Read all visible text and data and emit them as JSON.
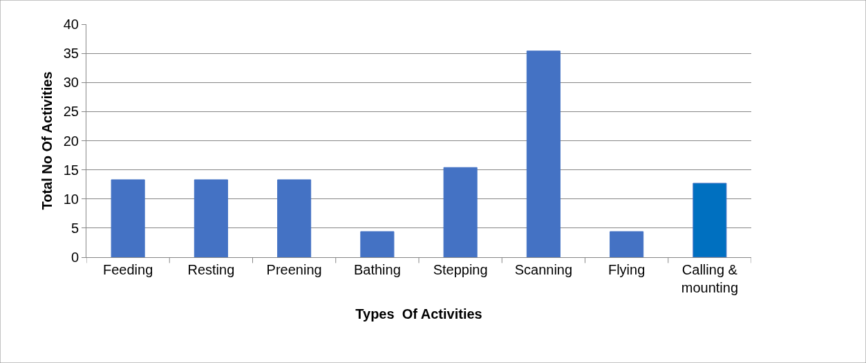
{
  "chart_data": {
    "type": "bar",
    "xlabel": "Types  Of Activities",
    "ylabel": "Total No Of Activities",
    "categories": [
      "Feeding",
      "Resting",
      "Preening",
      "Bathing",
      "Stepping",
      "Scanning",
      "Flying",
      "Calling & mounting"
    ],
    "values": [
      13.3,
      13.3,
      13.3,
      4.4,
      15.4,
      35.4,
      4.4,
      12.7
    ],
    "colors": [
      "#4472c4",
      "#4472c4",
      "#4472c4",
      "#4472c4",
      "#4472c4",
      "#4472c4",
      "#4472c4",
      "#0070c0"
    ],
    "ylim": [
      0,
      40
    ],
    "yticks": [
      0,
      5,
      10,
      15,
      20,
      25,
      30,
      35,
      40
    ],
    "grid": "y"
  }
}
